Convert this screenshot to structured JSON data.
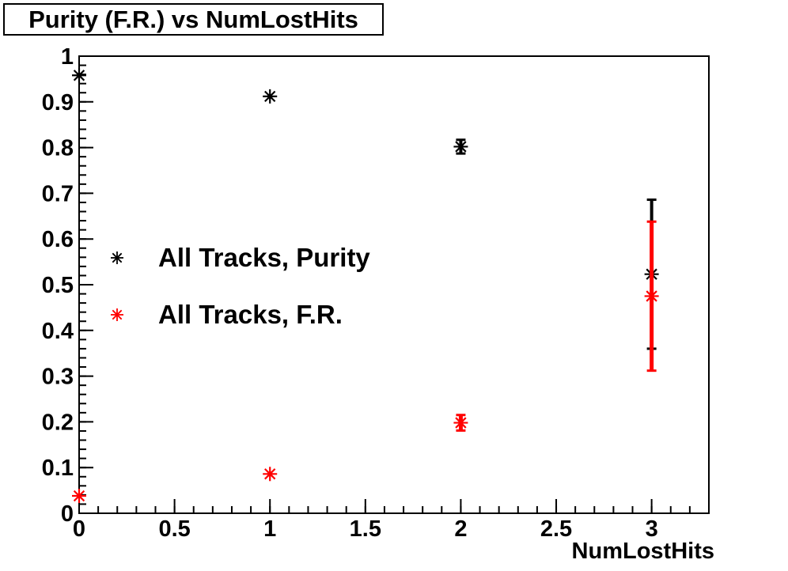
{
  "title": "Purity (F.R.) vs NumLostHits",
  "colors": {
    "background": "#ffffff",
    "frame": "#000000",
    "text": "#000000",
    "series_purity": "#000000",
    "series_fr": "#ff0000"
  },
  "legend": {
    "entries": [
      {
        "label": "All Tracks, Purity",
        "color": "#000000"
      },
      {
        "label": "All Tracks, F.R.",
        "color": "#ff0000"
      }
    ]
  },
  "chart_data": {
    "type": "scatter",
    "title": "Purity (F.R.) vs NumLostHits",
    "xlabel": "NumLostHits",
    "ylabel": "",
    "xlim": [
      0,
      3.3
    ],
    "ylim": [
      0,
      1
    ],
    "grid": false,
    "legend_position": "inside-left",
    "x_major_ticks": [
      0,
      0.5,
      1,
      1.5,
      2,
      2.5,
      3
    ],
    "x_tick_labels": [
      "0",
      "0.5",
      "1",
      "1.5",
      "2",
      "2.5",
      "3"
    ],
    "x_minor_step": 0.1,
    "y_major_ticks": [
      0,
      0.1,
      0.2,
      0.3,
      0.4,
      0.5,
      0.6,
      0.7,
      0.8,
      0.9,
      1
    ],
    "y_tick_labels": [
      "0",
      "0.1",
      "0.2",
      "0.3",
      "0.4",
      "0.5",
      "0.6",
      "0.7",
      "0.8",
      "0.9",
      "1"
    ],
    "y_minor_step": 0.02,
    "series": [
      {
        "name": "All Tracks, Purity",
        "color": "#000000",
        "marker": "asterisk",
        "points": [
          {
            "x": 0,
            "y": 0.958,
            "ey": 0
          },
          {
            "x": 1,
            "y": 0.912,
            "ey": 0
          },
          {
            "x": 2,
            "y": 0.802,
            "ey": 0.015
          },
          {
            "x": 3,
            "y": 0.523,
            "ey": 0.163
          }
        ]
      },
      {
        "name": "All Tracks, F.R.",
        "color": "#ff0000",
        "marker": "asterisk",
        "points": [
          {
            "x": 0,
            "y": 0.038,
            "ey": 0
          },
          {
            "x": 1,
            "y": 0.086,
            "ey": 0
          },
          {
            "x": 2,
            "y": 0.198,
            "ey": 0.017
          },
          {
            "x": 3,
            "y": 0.475,
            "ey": 0.163
          }
        ]
      }
    ]
  }
}
